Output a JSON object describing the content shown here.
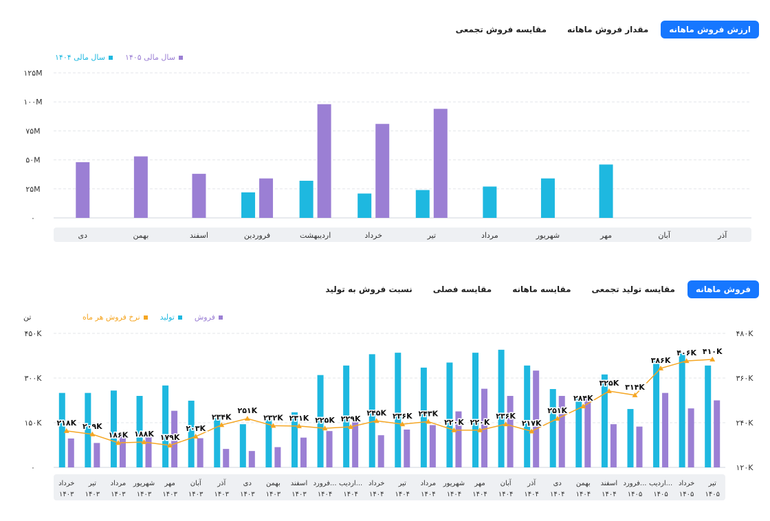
{
  "top_tabs": [
    {
      "label": "ارزش فروش ماهانه",
      "active": true
    },
    {
      "label": "مقدار فروش ماهانه",
      "active": false
    },
    {
      "label": "مقایسه فروش تجمعی",
      "active": false
    }
  ],
  "bottom_tabs": [
    {
      "label": "فروش ماهانه",
      "active": true
    },
    {
      "label": "مقایسه تولید تجمعی",
      "active": false
    },
    {
      "label": "مقایسه ماهانه",
      "active": false
    },
    {
      "label": "مقایسه فصلی",
      "active": false
    },
    {
      "label": "نسبت فروش به تولید",
      "active": false
    }
  ],
  "colors": {
    "cyan": "#1eb8e0",
    "purple": "#9b7fd4",
    "orange": "#f5a623",
    "tab_active": "#1677ff"
  },
  "chart_data": [
    {
      "type": "bar",
      "categories": [
        "دی",
        "بهمن",
        "اسفند",
        "فروردین",
        "اردیبهشت",
        "خرداد",
        "تیر",
        "مرداد",
        "شهریور",
        "مهر",
        "آبان",
        "آذر"
      ],
      "series": [
        {
          "name": "سال مالی ۱۴۰۵",
          "color": "#9b7fd4",
          "values": [
            48,
            53,
            38,
            34,
            98,
            81,
            94,
            null,
            null,
            null,
            null,
            null
          ]
        },
        {
          "name": "سال مالی ۱۴۰۴",
          "color": "#1eb8e0",
          "values": [
            null,
            null,
            null,
            22,
            32,
            21,
            24,
            27,
            34,
            46,
            null,
            null
          ]
        }
      ],
      "y_ticks": [
        "۰",
        "۲۵M",
        "۵۰M",
        "۷۵M",
        "۱۰۰M",
        "۱۲۵M"
      ],
      "ylim": [
        0,
        125
      ],
      "grid": true,
      "legend_position": "top-left"
    },
    {
      "type": "bar",
      "categories": [
        [
          "خرداد",
          "۱۴۰۳"
        ],
        [
          "تیر",
          "۱۴۰۳"
        ],
        [
          "مرداد",
          "۱۴۰۳"
        ],
        [
          "شهریور",
          "۱۴۰۳"
        ],
        [
          "مهر",
          "۱۴۰۳"
        ],
        [
          "آبان",
          "۱۴۰۳"
        ],
        [
          "آذر",
          "۱۴۰۳"
        ],
        [
          "دی",
          "۱۴۰۳"
        ],
        [
          "بهمن",
          "۱۴۰۳"
        ],
        [
          "اسفند",
          "۱۴۰۳"
        ],
        [
          "فرورد...",
          "۱۴۰۴"
        ],
        [
          "اردیب...",
          "۱۴۰۴"
        ],
        [
          "خرداد",
          "۱۴۰۴"
        ],
        [
          "تیر",
          "۱۴۰۴"
        ],
        [
          "مرداد",
          "۱۴۰۴"
        ],
        [
          "شهریور",
          "۱۴۰۴"
        ],
        [
          "مهر",
          "۱۴۰۴"
        ],
        [
          "آبان",
          "۱۴۰۴"
        ],
        [
          "آذر",
          "۱۴۰۴"
        ],
        [
          "دی",
          "۱۴۰۴"
        ],
        [
          "بهمن",
          "۱۴۰۴"
        ],
        [
          "اسفند",
          "۱۴۰۴"
        ],
        [
          "فرورد...",
          "۱۴۰۵"
        ],
        [
          "اردیب...",
          "۱۴۰۵"
        ],
        [
          "خرداد",
          "۱۴۰۵"
        ],
        [
          "تیر",
          "۱۴۰۵"
        ]
      ],
      "series": [
        {
          "name": "تولید",
          "color": "#1eb8e0",
          "values": [
            250,
            250,
            258,
            240,
            275,
            224,
            165,
            145,
            160,
            185,
            310,
            342,
            380,
            385,
            335,
            352,
            385,
            395,
            342,
            263,
            232,
            312,
            196,
            370,
            382,
            342
          ]
        },
        {
          "name": "فروش",
          "color": "#9b7fd4",
          "values": [
            97,
            82,
            108,
            110,
            190,
            98,
            62,
            55,
            68,
            100,
            122,
            165,
            108,
            127,
            142,
            188,
            264,
            240,
            325,
            240,
            232,
            145,
            137,
            250,
            198,
            225
          ]
        },
        {
          "name": "نرخ فروش هر ماه",
          "color": "#f5a623",
          "type": "line",
          "axis": "right",
          "values": [
            218,
            209,
            186,
            188,
            179,
            203,
            234,
            251,
            232,
            231,
            225,
            229,
            245,
            236,
            243,
            220,
            220,
            236,
            217,
            251,
            284,
            325,
            314,
            386,
            406,
            410
          ],
          "labels": [
            "۲۱۸K",
            "۲۰۹K",
            "۱۸۶K",
            "۱۸۸K",
            "۱۷۹K",
            "۲۰۳K",
            "۲۳۴K",
            "۲۵۱K",
            "۲۳۲K",
            "۲۳۱K",
            "۲۲۵K",
            "۲۲۹K",
            "۲۴۵K",
            "۲۳۶K",
            "۲۴۳K",
            "۲۲۰K",
            "۲۲۰K",
            "۲۳۶K",
            "۲۱۷K",
            "۲۵۱K",
            "۲۸۴K",
            "۳۲۵K",
            "۳۱۴K",
            "۳۸۶K",
            "۴۰۶K",
            "۴۱۰K"
          ]
        }
      ],
      "y_left_ticks": [
        "۰",
        "۱۵۰K",
        "۳۰۰K",
        "۴۵۰K"
      ],
      "ylim_left": [
        0,
        450
      ],
      "y_right_ticks": [
        "۱۲۰K",
        "۲۴۰K",
        "۳۶۰K",
        "۴۸۰K"
      ],
      "ylim_right": [
        120,
        480
      ],
      "y_left_unit": "تن",
      "grid": true,
      "legend_position": "top-left"
    }
  ]
}
